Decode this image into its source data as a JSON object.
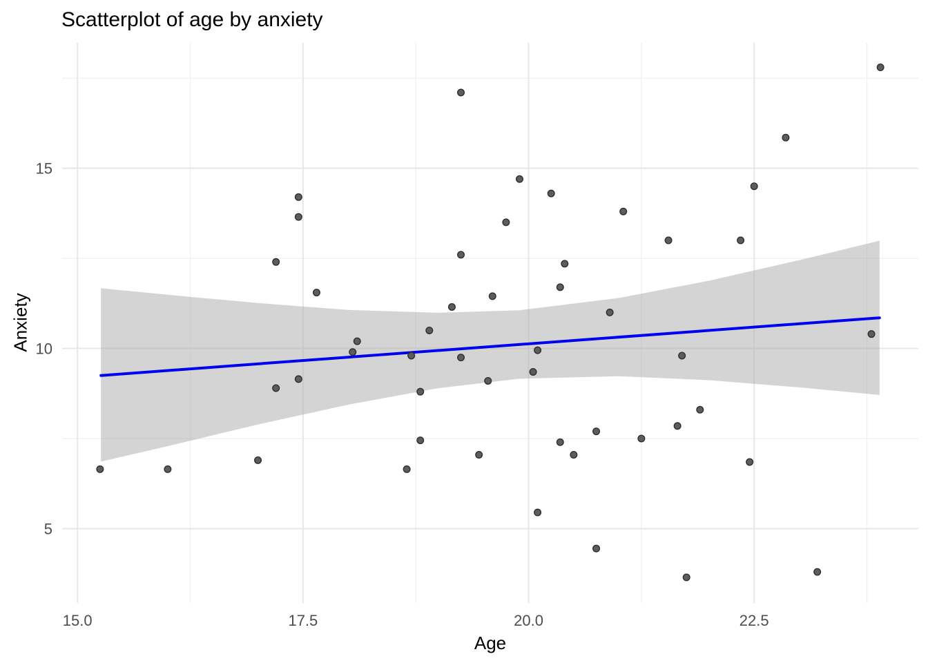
{
  "chart_data": {
    "type": "scatter",
    "title": "Scatterplot of age by anxiety",
    "xlabel": "Age",
    "ylabel": "Anxiety",
    "xlim": [
      14.83,
      24.32
    ],
    "ylim": [
      2.94,
      18.48
    ],
    "x_major_ticks": [
      15.0,
      17.5,
      20.0,
      22.5
    ],
    "x_tick_labels": [
      "15.0",
      "17.5",
      "20.0",
      "22.5"
    ],
    "x_minor_ticks": [
      16.25,
      18.75,
      21.25,
      23.75
    ],
    "y_major_ticks": [
      5,
      10,
      15
    ],
    "y_tick_labels": [
      "5",
      "10",
      "15"
    ],
    "y_minor_ticks": [
      7.5,
      12.5,
      17.5
    ],
    "grid": true,
    "legend": "none",
    "points": [
      [
        15.25,
        6.65
      ],
      [
        16.0,
        6.65
      ],
      [
        17.0,
        6.9
      ],
      [
        17.2,
        8.9
      ],
      [
        17.45,
        9.15
      ],
      [
        17.2,
        12.4
      ],
      [
        17.45,
        14.2
      ],
      [
        17.45,
        13.65
      ],
      [
        17.65,
        11.55
      ],
      [
        18.05,
        9.9
      ],
      [
        18.1,
        10.2
      ],
      [
        18.65,
        6.65
      ],
      [
        18.7,
        9.8
      ],
      [
        18.8,
        8.8
      ],
      [
        18.8,
        7.45
      ],
      [
        18.9,
        10.5
      ],
      [
        19.15,
        11.15
      ],
      [
        19.25,
        12.6
      ],
      [
        19.25,
        9.75
      ],
      [
        19.25,
        17.1
      ],
      [
        19.45,
        7.05
      ],
      [
        19.55,
        9.1
      ],
      [
        19.6,
        11.45
      ],
      [
        19.75,
        13.5
      ],
      [
        19.9,
        14.7
      ],
      [
        20.05,
        9.35
      ],
      [
        20.1,
        9.95
      ],
      [
        20.1,
        5.45
      ],
      [
        20.25,
        14.3
      ],
      [
        20.35,
        11.7
      ],
      [
        20.35,
        7.4
      ],
      [
        20.4,
        12.35
      ],
      [
        20.5,
        7.05
      ],
      [
        20.75,
        7.7
      ],
      [
        20.75,
        4.45
      ],
      [
        20.9,
        11.0
      ],
      [
        21.05,
        13.8
      ],
      [
        21.25,
        7.5
      ],
      [
        21.55,
        13.0
      ],
      [
        21.65,
        7.85
      ],
      [
        21.7,
        9.8
      ],
      [
        21.75,
        3.65
      ],
      [
        21.9,
        8.3
      ],
      [
        22.35,
        13.0
      ],
      [
        22.45,
        6.85
      ],
      [
        22.5,
        14.5
      ],
      [
        22.85,
        15.85
      ],
      [
        23.2,
        3.8
      ],
      [
        23.8,
        10.4
      ],
      [
        23.9,
        17.8
      ]
    ],
    "trend": {
      "kind": "linear-fit",
      "x": [
        15.26,
        23.89
      ],
      "y": [
        9.25,
        10.85
      ]
    },
    "ci_band": {
      "ages": [
        15.26,
        16.0,
        17.0,
        18.0,
        19.0,
        19.9,
        21.0,
        22.0,
        23.0,
        23.89
      ],
      "upper": [
        11.67,
        11.49,
        11.26,
        11.07,
        10.99,
        11.06,
        11.4,
        11.88,
        12.45,
        12.99
      ],
      "lower": [
        6.86,
        7.29,
        7.89,
        8.44,
        8.9,
        9.16,
        9.23,
        9.12,
        8.92,
        8.71
      ]
    },
    "colors": {
      "background": "#ffffff",
      "point_fill": "#5d5d5d",
      "point_border": "#2e2e2e",
      "trend_line": "#0000f0",
      "band_fill": "#a9a9a9",
      "grid_major": "#e7e7e7",
      "grid_minor": "#f1f1f1",
      "tick_label": "#4d4d4d",
      "title_text": "#000000"
    }
  }
}
